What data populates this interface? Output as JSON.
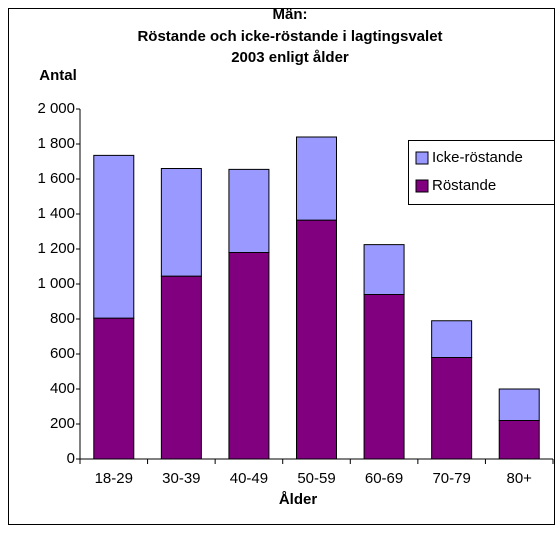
{
  "chart_data": {
    "type": "stacked_bar",
    "title": [
      "Män:",
      "Röstande och icke-röstande i lagtingsvalet",
      "2003 enligt ålder"
    ],
    "y_label": "Antal",
    "x_label": "Ålder",
    "categories": [
      "18-29",
      "30-39",
      "40-49",
      "50-59",
      "60-69",
      "70-79",
      "80+"
    ],
    "series": [
      {
        "name": "Röstande",
        "color": "#800080",
        "values": [
          805,
          1045,
          1180,
          1365,
          940,
          580,
          220
        ]
      },
      {
        "name": "Icke-röstande",
        "color": "#9999ff",
        "values": [
          930,
          615,
          475,
          475,
          285,
          210,
          180
        ]
      }
    ],
    "ylim": [
      0,
      2000
    ],
    "yticks": [
      0,
      200,
      400,
      600,
      800,
      {
        "value": 1000,
        "label": "1 000"
      },
      {
        "value": 1200,
        "label": "1 200"
      },
      {
        "value": 1400,
        "label": "1 400"
      },
      {
        "value": 1600,
        "label": "1 600"
      },
      {
        "value": 1800,
        "label": "1 800"
      },
      {
        "value": 2000,
        "label": "2 000"
      }
    ],
    "grid": false,
    "legend": "upper right"
  }
}
